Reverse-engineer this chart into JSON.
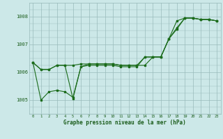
{
  "xlabel": "Graphe pression niveau de la mer (hPa)",
  "hours": [
    0,
    1,
    2,
    3,
    4,
    5,
    6,
    7,
    8,
    9,
    10,
    11,
    12,
    13,
    14,
    15,
    16,
    17,
    18,
    19,
    20,
    21,
    22,
    23
  ],
  "line1": [
    1006.35,
    1005.0,
    1005.3,
    1005.35,
    1005.3,
    1005.1,
    1006.2,
    1006.25,
    1006.25,
    1006.25,
    1006.25,
    1006.2,
    1006.2,
    1006.2,
    1006.55,
    1006.55,
    1006.55,
    1007.2,
    1007.6,
    1007.95,
    1007.95,
    1007.9,
    1007.9,
    1007.85
  ],
  "line2": [
    1006.35,
    1006.1,
    1006.1,
    1006.25,
    1006.25,
    1006.25,
    1006.3,
    1006.3,
    1006.3,
    1006.3,
    1006.3,
    1006.25,
    1006.25,
    1006.25,
    1006.25,
    1006.55,
    1006.55,
    1007.2,
    1007.55,
    1007.95,
    1007.95,
    1007.9,
    1007.9,
    1007.85
  ],
  "line3": [
    1006.35,
    1006.1,
    1006.1,
    1006.25,
    1006.25,
    1005.05,
    1006.2,
    1006.3,
    1006.3,
    1006.3,
    1006.3,
    1006.25,
    1006.25,
    1006.25,
    1006.55,
    1006.55,
    1006.55,
    1007.2,
    1007.85,
    1007.95,
    1007.95,
    1007.9,
    1007.9,
    1007.85
  ],
  "bg_color": "#cce8e8",
  "line_color": "#1a6b1a",
  "grid_color": "#99bbbb",
  "label_color": "#1a5c1a",
  "ylim_min": 1004.5,
  "ylim_max": 1008.5,
  "yticks": [
    1005,
    1006,
    1007,
    1008
  ],
  "marker": "s",
  "markersize": 1.8,
  "linewidth": 0.8
}
